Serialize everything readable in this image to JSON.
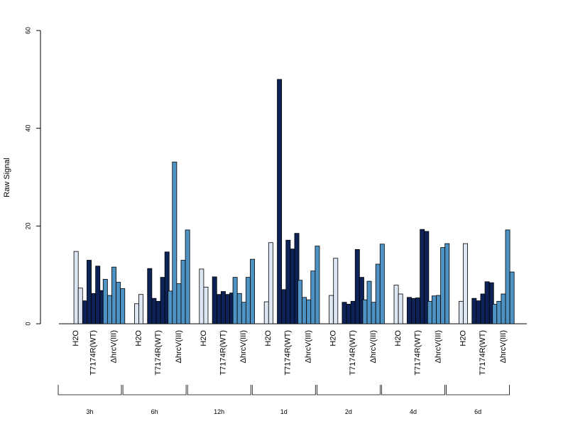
{
  "chart_data": {
    "type": "bar",
    "ylabel": "Raw Signal",
    "ylim": [
      0,
      60
    ],
    "yticks": [
      0,
      20,
      40,
      60
    ],
    "grid": false,
    "group_labels": [
      "H2O",
      "T7174R(WT)",
      "ΔhrcV(III)"
    ],
    "group_colors": [
      "#dce7f3",
      "#0d2357",
      "#4e93c4"
    ],
    "timepoints": [
      {
        "label": "3h",
        "groups": [
          [
            0,
            14.8,
            7.3
          ],
          [
            4.7,
            13.0,
            6.2,
            11.8,
            6.8
          ],
          [
            9.1,
            5.8,
            11.6,
            8.5,
            7.2
          ]
        ]
      },
      {
        "label": "6h",
        "groups": [
          [
            4.1,
            6.0
          ],
          [
            11.3,
            5.2,
            4.6,
            9.5,
            14.7
          ],
          [
            6.7,
            33.1,
            8.2,
            13.0,
            19.2
          ]
        ]
      },
      {
        "label": "12h",
        "groups": [
          [
            11.2,
            7.5
          ],
          [
            9.6,
            6.0,
            6.6,
            6.0,
            6.3
          ],
          [
            9.5,
            6.2,
            4.4,
            9.5,
            13.2
          ]
        ]
      },
      {
        "label": "1d",
        "groups": [
          [
            4.5,
            16.6
          ],
          [
            50.0,
            7.0,
            17.1,
            15.3,
            18.5
          ],
          [
            8.9,
            5.4,
            4.9,
            10.8,
            15.9
          ]
        ]
      },
      {
        "label": "2d",
        "groups": [
          [
            5.8,
            13.4
          ],
          [
            4.4,
            4.0,
            4.6,
            15.2,
            9.5
          ],
          [
            4.9,
            8.7,
            4.4,
            12.2,
            16.3
          ]
        ]
      },
      {
        "label": "4d",
        "groups": [
          [
            7.9,
            6.1
          ],
          [
            5.4,
            5.2,
            5.3,
            19.3,
            18.9
          ],
          [
            4.6,
            5.7,
            5.8,
            15.6,
            16.4
          ]
        ]
      },
      {
        "label": "6d",
        "groups": [
          [
            4.6,
            16.4
          ],
          [
            5.2,
            4.7,
            6.1,
            8.6,
            8.4
          ],
          [
            4.0,
            4.6,
            6.1,
            19.2,
            10.6
          ]
        ]
      }
    ]
  }
}
